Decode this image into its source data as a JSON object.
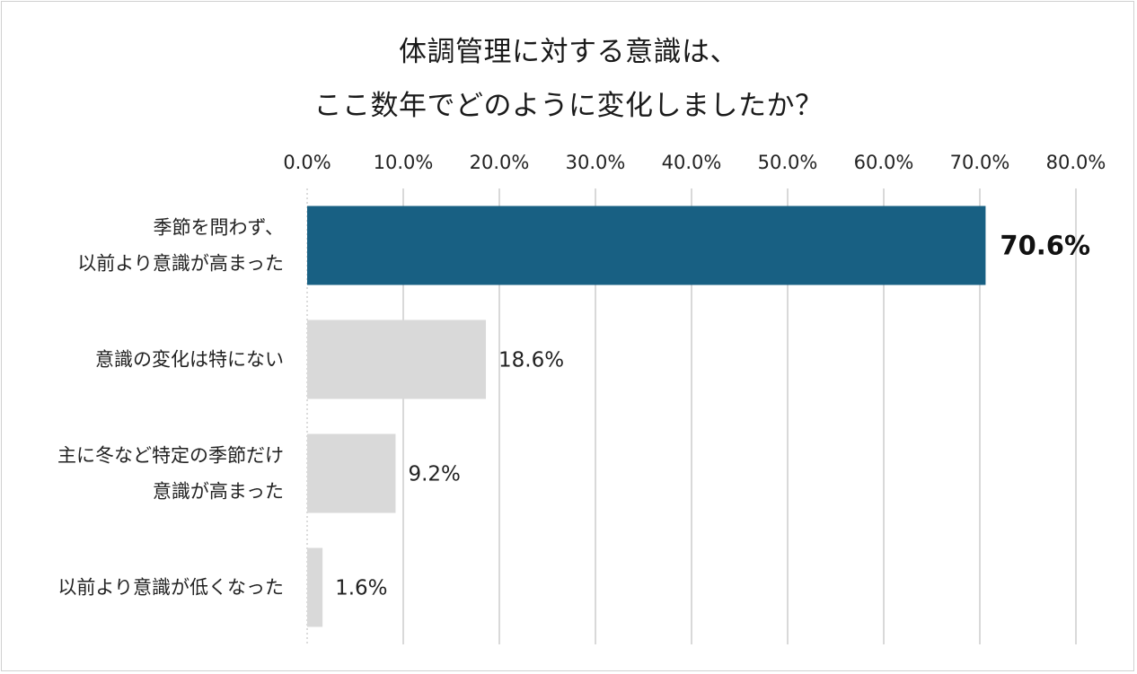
{
  "title": {
    "line1": "体調管理に対する意識は、",
    "line2": "ここ数年でどのように変化しましたか？"
  },
  "colors": {
    "highlight": "#186083",
    "bar": "#d9d9d9",
    "grid": "#d9d9d9"
  },
  "chart_data": {
    "type": "bar",
    "orientation": "horizontal",
    "title": "体調管理に対する意識は、ここ数年でどのように変化しましたか？",
    "xlim": [
      0,
      80
    ],
    "x_ticks": [
      0,
      10,
      20,
      30,
      40,
      50,
      60,
      70,
      80
    ],
    "x_tick_labels": [
      "0.0%",
      "10.0%",
      "20.0%",
      "30.0%",
      "40.0%",
      "50.0%",
      "60.0%",
      "70.0%",
      "80.0%"
    ],
    "axis_position": "top",
    "grid": true,
    "categories": [
      [
        "季節を問わず、",
        "以前より意識が高まった"
      ],
      [
        "意識の変化は特にない"
      ],
      [
        "主に冬など特定の季節だけ",
        "意識が高まった"
      ],
      [
        "以前より意識が低くなった"
      ]
    ],
    "values": [
      70.6,
      18.6,
      9.2,
      1.6
    ],
    "value_labels": [
      "70.6%",
      "18.6%",
      "9.2%",
      "1.6%"
    ],
    "highlight_index": 0
  }
}
